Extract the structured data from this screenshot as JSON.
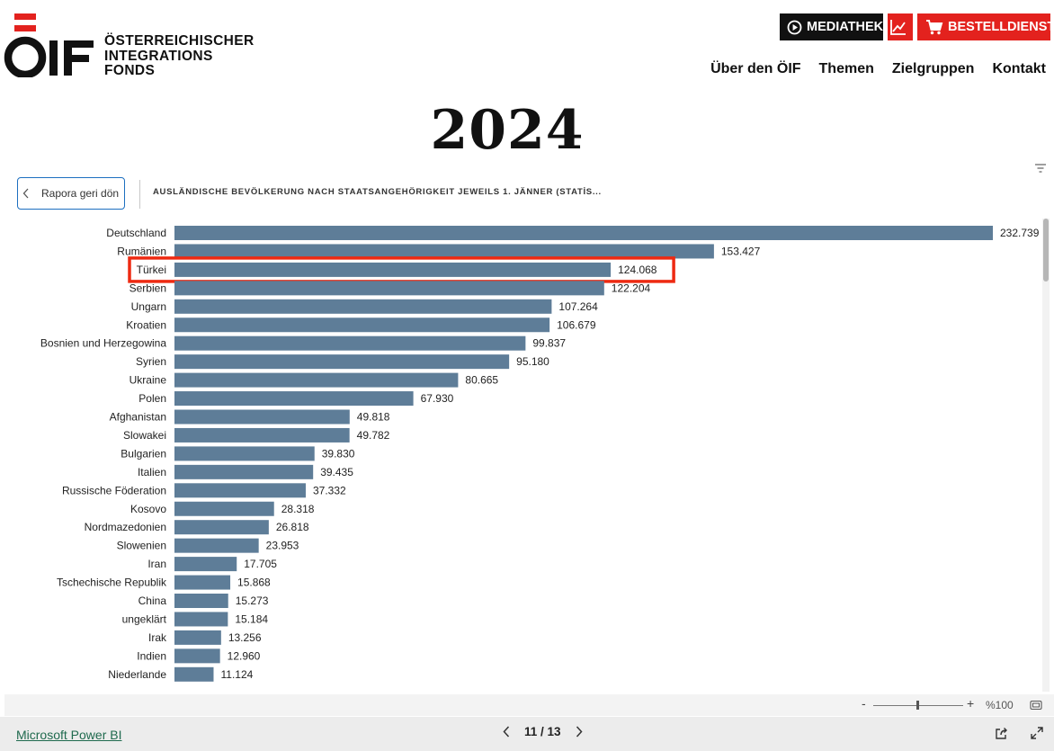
{
  "header": {
    "logo_lines": [
      "ÖSTERREICHISCHER",
      "INTEGRATIONS",
      "FONDS"
    ],
    "logo_mark_text": "ÖIF",
    "buttons": {
      "mediathek": "MEDIATHEK",
      "bestelldienst": "BESTELLDIENST"
    },
    "nav": [
      "Über den ÖIF",
      "Themen",
      "Zielgruppen",
      "Kontakt"
    ],
    "accent_color": "#e3221e"
  },
  "page": {
    "year": "2024"
  },
  "report": {
    "back_button": "Rapora geri dön",
    "visual_title": "AUSLÄNDISCHE BEVÖLKERUNG NACH STAATSANGEHÖRIGKEIT JEWEILS 1. JÄNNER (STATİS..."
  },
  "chart_data": {
    "type": "bar",
    "orientation": "horizontal",
    "bar_color": "#5e7d98",
    "highlight_color": "#ee2a12",
    "highlighted_category": "Türkei",
    "xlim": [
      0,
      232739
    ],
    "categories": [
      "Deutschland",
      "Rumänien",
      "Türkei",
      "Serbien",
      "Ungarn",
      "Kroatien",
      "Bosnien und Herzegowina",
      "Syrien",
      "Ukraine",
      "Polen",
      "Afghanistan",
      "Slowakei",
      "Bulgarien",
      "Italien",
      "Russische Föderation",
      "Kosovo",
      "Nordmazedonien",
      "Slowenien",
      "Iran",
      "Tschechische Republik",
      "China",
      "ungeklärt",
      "Irak",
      "Indien",
      "Niederlande"
    ],
    "values": [
      232739,
      153427,
      124068,
      122204,
      107264,
      106679,
      99837,
      95180,
      80665,
      67930,
      49818,
      49782,
      39830,
      39435,
      37332,
      28318,
      26818,
      23953,
      17705,
      15868,
      15273,
      15184,
      13256,
      12960,
      11124
    ],
    "value_labels": [
      "232.739",
      "153.427",
      "124.068",
      "122.204",
      "107.264",
      "106.679",
      "99.837",
      "95.180",
      "80.665",
      "67.930",
      "49.818",
      "49.782",
      "39.830",
      "39.435",
      "37.332",
      "28.318",
      "26.818",
      "23.953",
      "17.705",
      "15.868",
      "15.273",
      "15.184",
      "13.256",
      "12.960",
      "11.124"
    ]
  },
  "zoom": {
    "minus": "-",
    "plus": "+",
    "level": "%100"
  },
  "footer": {
    "powerbi_link": "Microsoft Power BI",
    "pager": "11 / 13"
  }
}
